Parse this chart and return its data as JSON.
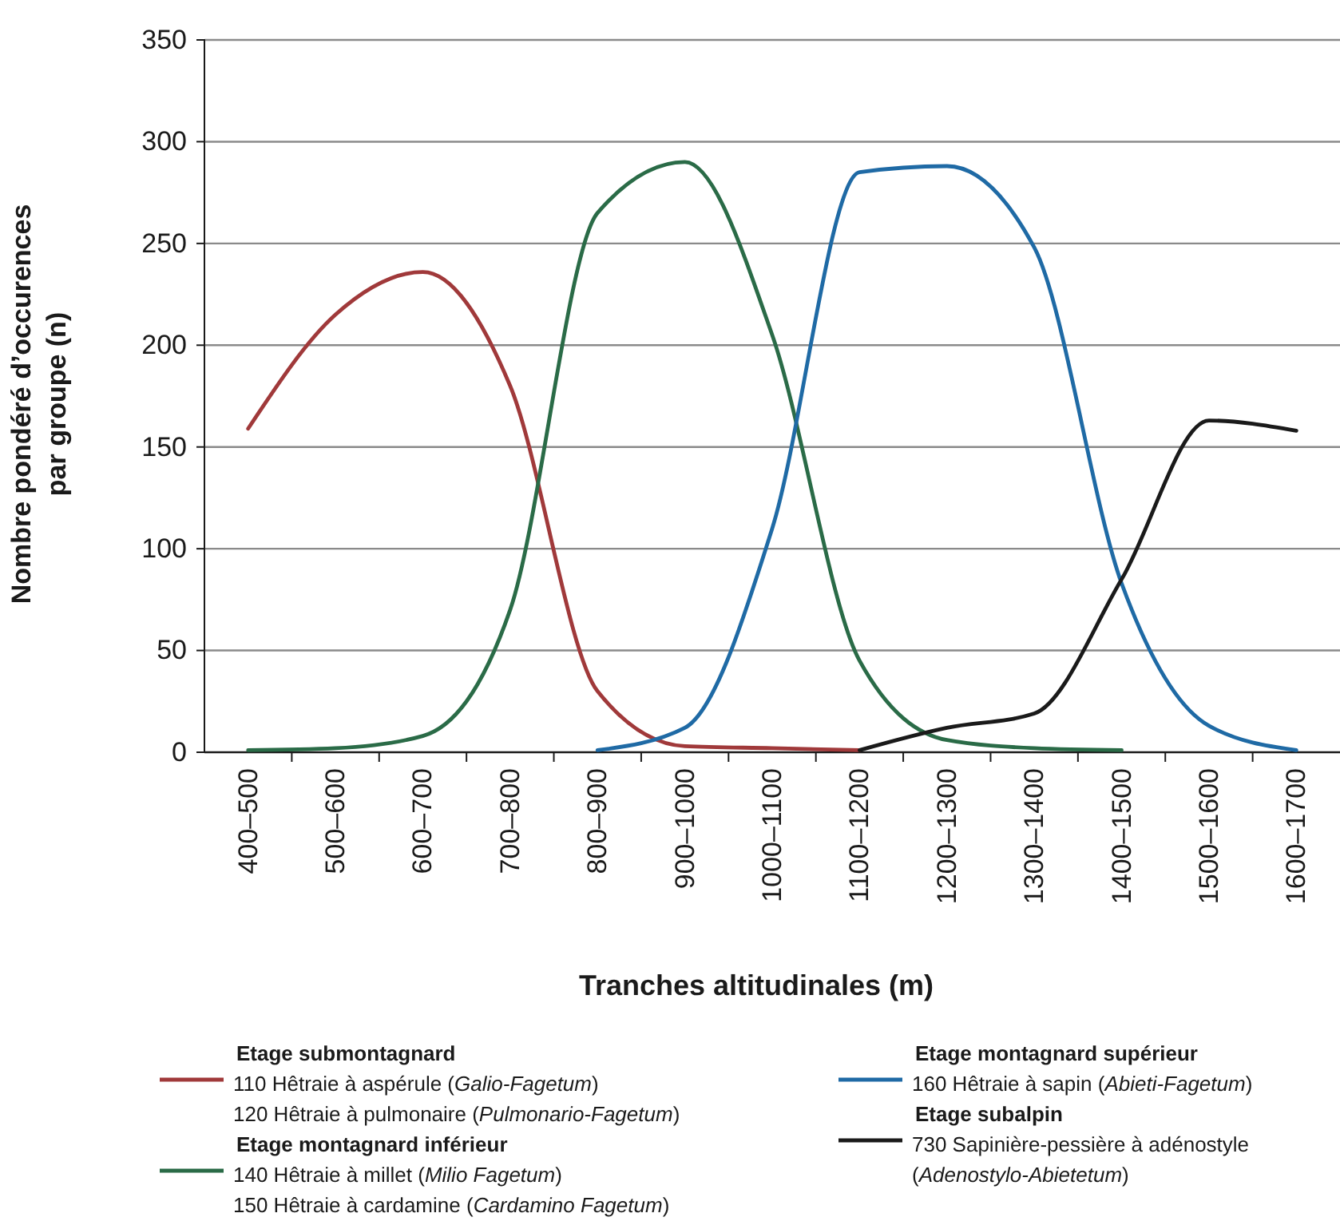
{
  "chart_data": {
    "type": "line",
    "xlabel": "Tranches altitudinales (m)",
    "ylabel": "Nombre pondéré d’occurences\npar groupe (n)",
    "categories": [
      "400–500",
      "500–600",
      "600–700",
      "700–800",
      "800–900",
      "900–1000",
      "1000–1100",
      "1100–1200",
      "1200–1300",
      "1300–1400",
      "1400–1500",
      "1500–1600",
      "1600–1700"
    ],
    "ylim": [
      0,
      350
    ],
    "yticks": [
      0,
      50,
      100,
      150,
      200,
      250,
      300,
      350
    ],
    "grid": "y",
    "legend": "bottom",
    "line_style": "solid",
    "marker": "none",
    "series": [
      {
        "name": "Etage submontagnard\n110  Hêtraie à aspérule (Galio-Fagetum)\n120  Hêtraie à pulmonaire (Pulmonario-Fagetum)",
        "color": "#a0393a",
        "values": [
          159,
          215,
          236,
          180,
          30,
          3,
          2,
          1,
          null,
          null,
          null,
          null,
          null
        ]
      },
      {
        "name": "Etage montagnard inférieur\n140  Hêtraie à millet (Milio Fagetum)\n150  Hêtraie à cardamine (Cardamino Fagetum)",
        "color": "#2a6b47",
        "values": [
          1,
          2,
          8,
          70,
          265,
          290,
          205,
          45,
          6,
          2,
          1,
          null,
          null
        ]
      },
      {
        "name": "Etage montagnard supérieur\n160  Hêtraie à sapin (Abieti-Fagetum)",
        "color": "#1f6aa5",
        "values": [
          null,
          null,
          null,
          null,
          1,
          12,
          110,
          285,
          288,
          248,
          83,
          13,
          1
        ]
      },
      {
        "name": "Etage subalpin\n730  Sapinière-pessière à adénostyle\n(Adenostylo-Abietetum)",
        "color": "#1a1a1a",
        "values": [
          null,
          null,
          null,
          null,
          null,
          null,
          null,
          1,
          12,
          19,
          85,
          163,
          158
        ]
      }
    ]
  }
}
